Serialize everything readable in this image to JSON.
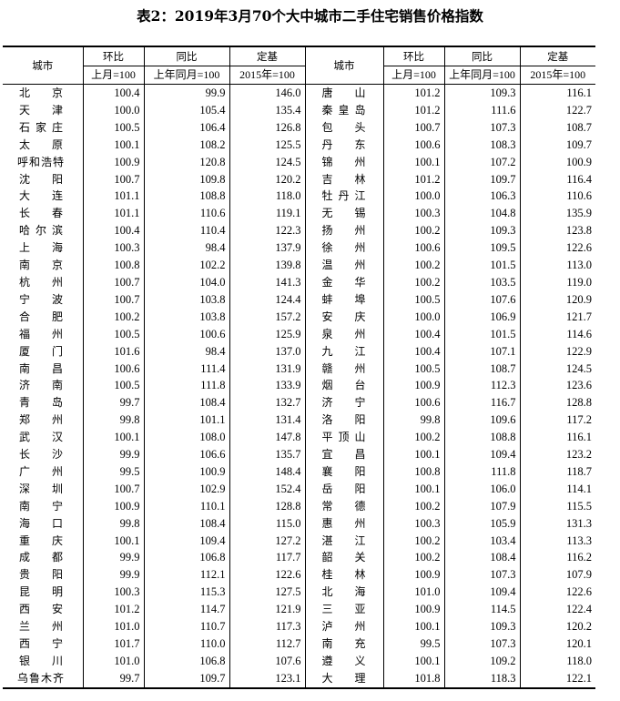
{
  "title": "表2：2019年3月70个大中城市二手住宅销售价格指数",
  "headers": {
    "city": "城市",
    "mom": "环比",
    "yoy": "同比",
    "fixed": "定基",
    "mom_base": "上月=100",
    "yoy_base": "上年同月=100",
    "fixed_base": "2015年=100"
  },
  "left": [
    {
      "city": "北京",
      "mom": "100.4",
      "yoy": "99.9",
      "fixed": "146.0"
    },
    {
      "city": "天津",
      "mom": "100.0",
      "yoy": "105.4",
      "fixed": "135.4"
    },
    {
      "city": "石家庄",
      "mom": "100.5",
      "yoy": "106.4",
      "fixed": "126.8"
    },
    {
      "city": "太原",
      "mom": "100.1",
      "yoy": "108.2",
      "fixed": "125.5"
    },
    {
      "city": "呼和浩特",
      "mom": "100.9",
      "yoy": "120.8",
      "fixed": "124.5"
    },
    {
      "city": "沈阳",
      "mom": "100.7",
      "yoy": "109.8",
      "fixed": "120.2"
    },
    {
      "city": "大连",
      "mom": "101.1",
      "yoy": "108.8",
      "fixed": "118.0"
    },
    {
      "city": "长春",
      "mom": "101.1",
      "yoy": "110.6",
      "fixed": "119.1"
    },
    {
      "city": "哈尔滨",
      "mom": "100.4",
      "yoy": "110.4",
      "fixed": "122.3"
    },
    {
      "city": "上海",
      "mom": "100.3",
      "yoy": "98.4",
      "fixed": "137.9"
    },
    {
      "city": "南京",
      "mom": "100.8",
      "yoy": "102.2",
      "fixed": "139.8"
    },
    {
      "city": "杭州",
      "mom": "100.7",
      "yoy": "104.0",
      "fixed": "141.3"
    },
    {
      "city": "宁波",
      "mom": "100.7",
      "yoy": "103.8",
      "fixed": "124.4"
    },
    {
      "city": "合肥",
      "mom": "100.2",
      "yoy": "103.8",
      "fixed": "157.2"
    },
    {
      "city": "福州",
      "mom": "100.5",
      "yoy": "100.6",
      "fixed": "125.9"
    },
    {
      "city": "厦门",
      "mom": "101.6",
      "yoy": "98.4",
      "fixed": "137.0"
    },
    {
      "city": "南昌",
      "mom": "100.6",
      "yoy": "111.4",
      "fixed": "131.9"
    },
    {
      "city": "济南",
      "mom": "100.5",
      "yoy": "111.8",
      "fixed": "133.9"
    },
    {
      "city": "青岛",
      "mom": "99.7",
      "yoy": "108.4",
      "fixed": "132.7"
    },
    {
      "city": "郑州",
      "mom": "99.8",
      "yoy": "101.1",
      "fixed": "131.4"
    },
    {
      "city": "武汉",
      "mom": "100.1",
      "yoy": "108.0",
      "fixed": "147.8"
    },
    {
      "city": "长沙",
      "mom": "99.9",
      "yoy": "106.6",
      "fixed": "135.7"
    },
    {
      "city": "广州",
      "mom": "99.5",
      "yoy": "100.9",
      "fixed": "148.4"
    },
    {
      "city": "深圳",
      "mom": "100.7",
      "yoy": "102.9",
      "fixed": "152.4"
    },
    {
      "city": "南宁",
      "mom": "100.9",
      "yoy": "110.1",
      "fixed": "128.8"
    },
    {
      "city": "海口",
      "mom": "99.8",
      "yoy": "108.4",
      "fixed": "115.0"
    },
    {
      "city": "重庆",
      "mom": "100.1",
      "yoy": "109.4",
      "fixed": "127.2"
    },
    {
      "city": "成都",
      "mom": "99.9",
      "yoy": "106.8",
      "fixed": "117.7"
    },
    {
      "city": "贵阳",
      "mom": "99.9",
      "yoy": "112.1",
      "fixed": "122.6"
    },
    {
      "city": "昆明",
      "mom": "100.3",
      "yoy": "115.3",
      "fixed": "127.5"
    },
    {
      "city": "西安",
      "mom": "101.2",
      "yoy": "114.7",
      "fixed": "121.9"
    },
    {
      "city": "兰州",
      "mom": "101.0",
      "yoy": "110.7",
      "fixed": "117.3"
    },
    {
      "city": "西宁",
      "mom": "101.7",
      "yoy": "110.0",
      "fixed": "112.7"
    },
    {
      "city": "银川",
      "mom": "101.0",
      "yoy": "106.8",
      "fixed": "107.6"
    },
    {
      "city": "乌鲁木齐",
      "mom": "99.7",
      "yoy": "109.7",
      "fixed": "123.1"
    }
  ],
  "right": [
    {
      "city": "唐山",
      "mom": "101.2",
      "yoy": "109.3",
      "fixed": "116.1"
    },
    {
      "city": "秦皇岛",
      "mom": "101.2",
      "yoy": "111.6",
      "fixed": "122.7"
    },
    {
      "city": "包头",
      "mom": "100.7",
      "yoy": "107.3",
      "fixed": "108.7"
    },
    {
      "city": "丹东",
      "mom": "100.6",
      "yoy": "108.3",
      "fixed": "109.7"
    },
    {
      "city": "锦州",
      "mom": "100.1",
      "yoy": "107.2",
      "fixed": "100.9"
    },
    {
      "city": "吉林",
      "mom": "101.2",
      "yoy": "109.7",
      "fixed": "116.4"
    },
    {
      "city": "牡丹江",
      "mom": "100.0",
      "yoy": "106.3",
      "fixed": "110.6"
    },
    {
      "city": "无锡",
      "mom": "100.3",
      "yoy": "104.8",
      "fixed": "135.9"
    },
    {
      "city": "扬州",
      "mom": "100.2",
      "yoy": "109.3",
      "fixed": "123.8"
    },
    {
      "city": "徐州",
      "mom": "100.6",
      "yoy": "109.5",
      "fixed": "122.6"
    },
    {
      "city": "温州",
      "mom": "100.2",
      "yoy": "101.5",
      "fixed": "113.0"
    },
    {
      "city": "金华",
      "mom": "100.2",
      "yoy": "103.5",
      "fixed": "119.0"
    },
    {
      "city": "蚌埠",
      "mom": "100.5",
      "yoy": "107.6",
      "fixed": "120.9"
    },
    {
      "city": "安庆",
      "mom": "100.0",
      "yoy": "106.9",
      "fixed": "121.7"
    },
    {
      "city": "泉州",
      "mom": "100.4",
      "yoy": "101.5",
      "fixed": "114.6"
    },
    {
      "city": "九江",
      "mom": "100.4",
      "yoy": "107.1",
      "fixed": "122.9"
    },
    {
      "city": "赣州",
      "mom": "100.5",
      "yoy": "108.7",
      "fixed": "124.5"
    },
    {
      "city": "烟台",
      "mom": "100.9",
      "yoy": "112.3",
      "fixed": "123.6"
    },
    {
      "city": "济宁",
      "mom": "100.6",
      "yoy": "116.7",
      "fixed": "128.8"
    },
    {
      "city": "洛阳",
      "mom": "99.8",
      "yoy": "109.6",
      "fixed": "117.2"
    },
    {
      "city": "平顶山",
      "mom": "100.2",
      "yoy": "108.8",
      "fixed": "116.1"
    },
    {
      "city": "宜昌",
      "mom": "100.1",
      "yoy": "109.4",
      "fixed": "123.2"
    },
    {
      "city": "襄阳",
      "mom": "100.8",
      "yoy": "111.8",
      "fixed": "118.7"
    },
    {
      "city": "岳阳",
      "mom": "100.1",
      "yoy": "106.0",
      "fixed": "114.1"
    },
    {
      "city": "常德",
      "mom": "100.2",
      "yoy": "107.9",
      "fixed": "115.5"
    },
    {
      "city": "惠州",
      "mom": "100.3",
      "yoy": "105.9",
      "fixed": "131.3"
    },
    {
      "city": "湛江",
      "mom": "100.2",
      "yoy": "103.4",
      "fixed": "113.3"
    },
    {
      "city": "韶关",
      "mom": "100.2",
      "yoy": "108.4",
      "fixed": "116.2"
    },
    {
      "city": "桂林",
      "mom": "100.9",
      "yoy": "107.3",
      "fixed": "107.9"
    },
    {
      "city": "北海",
      "mom": "101.0",
      "yoy": "109.4",
      "fixed": "122.6"
    },
    {
      "city": "三亚",
      "mom": "100.9",
      "yoy": "114.5",
      "fixed": "122.4"
    },
    {
      "city": "泸州",
      "mom": "100.1",
      "yoy": "109.3",
      "fixed": "120.2"
    },
    {
      "city": "南充",
      "mom": "99.5",
      "yoy": "107.3",
      "fixed": "120.1"
    },
    {
      "city": "遵义",
      "mom": "100.1",
      "yoy": "109.2",
      "fixed": "118.0"
    },
    {
      "city": "大理",
      "mom": "101.8",
      "yoy": "118.3",
      "fixed": "122.1"
    }
  ]
}
